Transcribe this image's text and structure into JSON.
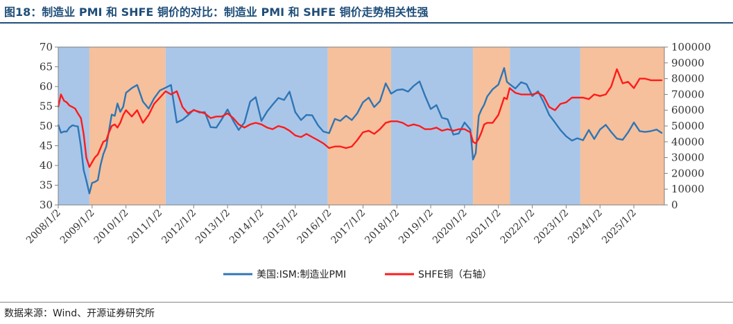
{
  "title": "图18：制造业 PMI 和 SHFE 铜价的对比：制造业 PMI 和 SHFE 铜价走势相关性强",
  "source": "数据来源：Wind、开源证券研究所",
  "chart_data": {
    "type": "line",
    "title": "",
    "xlabel": "",
    "ylabel": "",
    "x_ticks": [
      "2008/1/2",
      "2009/1/2",
      "2010/1/2",
      "2011/1/2",
      "2012/1/2",
      "2013/1/2",
      "2014/1/2",
      "2015/1/2",
      "2016/1/2",
      "2017/1/2",
      "2018/1/2",
      "2019/1/2",
      "2020/1/2",
      "2021/1/2",
      "2022/1/2",
      "2023/1/2",
      "2024/1/2",
      "2025/1/2"
    ],
    "x_range": [
      2008.0,
      2025.9
    ],
    "y_left": {
      "range": [
        30,
        70
      ],
      "ticks": [
        "30",
        "35",
        "40",
        "45",
        "50",
        "55",
        "60",
        "65",
        "70"
      ]
    },
    "y_right": {
      "range": [
        0,
        100000
      ],
      "ticks": [
        "0",
        "10000",
        "20000",
        "30000",
        "40000",
        "50000",
        "60000",
        "70000",
        "80000",
        "90000",
        "100000"
      ]
    },
    "shading": [
      {
        "from": 2008.0,
        "to": 2008.92,
        "color": "#a9c6e8"
      },
      {
        "from": 2008.92,
        "to": 2011.17,
        "color": "#f5c09b"
      },
      {
        "from": 2011.17,
        "to": 2015.96,
        "color": "#a9c6e8"
      },
      {
        "from": 2015.96,
        "to": 2017.83,
        "color": "#f5c09b"
      },
      {
        "from": 2017.83,
        "to": 2020.25,
        "color": "#a9c6e8"
      },
      {
        "from": 2020.25,
        "to": 2021.34,
        "color": "#f5c09b"
      },
      {
        "from": 2021.34,
        "to": 2023.42,
        "color": "#a9c6e8"
      },
      {
        "from": 2023.42,
        "to": 2025.9,
        "color": "#f5c09b"
      }
    ],
    "series": [
      {
        "name": "美国:ISM:制造业PMI",
        "axis": "left",
        "color": "#2e75b6",
        "x": [
          2008.0,
          2008.08,
          2008.17,
          2008.25,
          2008.33,
          2008.42,
          2008.5,
          2008.58,
          2008.67,
          2008.75,
          2008.83,
          2008.92,
          2009.0,
          2009.08,
          2009.17,
          2009.25,
          2009.33,
          2009.42,
          2009.5,
          2009.58,
          2009.67,
          2009.75,
          2009.83,
          2009.92,
          2010.0,
          2010.17,
          2010.33,
          2010.5,
          2010.67,
          2010.83,
          2011.0,
          2011.17,
          2011.33,
          2011.5,
          2011.67,
          2011.83,
          2012.0,
          2012.17,
          2012.33,
          2012.5,
          2012.67,
          2012.83,
          2013.0,
          2013.17,
          2013.33,
          2013.5,
          2013.67,
          2013.83,
          2014.0,
          2014.17,
          2014.33,
          2014.5,
          2014.67,
          2014.83,
          2015.0,
          2015.17,
          2015.33,
          2015.5,
          2015.67,
          2015.83,
          2016.0,
          2016.17,
          2016.33,
          2016.5,
          2016.67,
          2016.83,
          2017.0,
          2017.17,
          2017.33,
          2017.5,
          2017.67,
          2017.83,
          2018.0,
          2018.17,
          2018.33,
          2018.5,
          2018.67,
          2018.83,
          2019.0,
          2019.17,
          2019.33,
          2019.5,
          2019.67,
          2019.83,
          2020.0,
          2020.17,
          2020.25,
          2020.33,
          2020.42,
          2020.5,
          2020.58,
          2020.67,
          2020.83,
          2021.0,
          2021.17,
          2021.25,
          2021.33,
          2021.5,
          2021.67,
          2021.83,
          2022.0,
          2022.17,
          2022.33,
          2022.5,
          2022.67,
          2022.83,
          2023.0,
          2023.17,
          2023.33,
          2023.5,
          2023.67,
          2023.83,
          2024.0,
          2024.17,
          2024.33,
          2024.5,
          2024.67,
          2024.83,
          2025.0,
          2025.17,
          2025.33,
          2025.5,
          2025.67,
          2025.83
        ],
        "values": [
          50.3,
          48.3,
          48.6,
          48.6,
          49.6,
          50.2,
          50.0,
          49.9,
          44.8,
          38.9,
          36.2,
          32.9,
          35.6,
          35.8,
          36.3,
          40.1,
          42.8,
          44.8,
          48.9,
          52.9,
          52.6,
          55.7,
          53.6,
          54.9,
          58.4,
          59.6,
          60.4,
          56.2,
          54.4,
          57.0,
          59.0,
          59.7,
          60.4,
          50.9,
          51.6,
          52.7,
          54.1,
          53.4,
          53.5,
          49.7,
          49.6,
          51.7,
          54.2,
          51.3,
          49.0,
          50.9,
          56.2,
          57.3,
          51.3,
          53.7,
          55.4,
          57.1,
          56.6,
          58.7,
          53.5,
          51.5,
          52.8,
          52.7,
          50.2,
          48.6,
          48.2,
          51.8,
          51.3,
          52.6,
          51.5,
          53.2,
          56.0,
          57.2,
          54.8,
          56.3,
          60.8,
          58.2,
          59.1,
          59.3,
          58.7,
          60.2,
          61.3,
          57.7,
          54.3,
          55.3,
          52.1,
          51.7,
          47.8,
          48.1,
          50.9,
          49.1,
          41.5,
          43.1,
          52.6,
          54.2,
          55.4,
          57.5,
          59.3,
          60.5,
          64.7,
          61.2,
          60.6,
          59.5,
          61.1,
          60.6,
          57.6,
          58.8,
          56.1,
          52.8,
          50.9,
          49.0,
          47.4,
          46.3,
          46.9,
          46.4,
          49.0,
          46.7,
          49.1,
          50.3,
          48.5,
          46.8,
          46.5,
          48.4,
          50.9,
          48.7,
          48.5,
          48.7,
          49.1,
          48.2
        ]
      },
      {
        "name": "SHFE铜（右轴）",
        "axis": "right",
        "color": "#ff1a1a",
        "x": [
          2008.0,
          2008.08,
          2008.17,
          2008.25,
          2008.33,
          2008.42,
          2008.5,
          2008.58,
          2008.67,
          2008.75,
          2008.83,
          2008.92,
          2009.0,
          2009.08,
          2009.17,
          2009.25,
          2009.33,
          2009.42,
          2009.5,
          2009.58,
          2009.67,
          2009.75,
          2009.83,
          2009.92,
          2010.0,
          2010.17,
          2010.33,
          2010.5,
          2010.67,
          2010.83,
          2011.0,
          2011.17,
          2011.33,
          2011.5,
          2011.67,
          2011.83,
          2012.0,
          2012.17,
          2012.33,
          2012.5,
          2012.67,
          2012.83,
          2013.0,
          2013.17,
          2013.33,
          2013.5,
          2013.67,
          2013.83,
          2014.0,
          2014.17,
          2014.33,
          2014.5,
          2014.67,
          2014.83,
          2015.0,
          2015.17,
          2015.33,
          2015.5,
          2015.67,
          2015.83,
          2016.0,
          2016.17,
          2016.33,
          2016.5,
          2016.67,
          2016.83,
          2017.0,
          2017.17,
          2017.33,
          2017.5,
          2017.67,
          2017.83,
          2018.0,
          2018.17,
          2018.33,
          2018.5,
          2018.67,
          2018.83,
          2019.0,
          2019.17,
          2019.33,
          2019.5,
          2019.67,
          2019.83,
          2020.0,
          2020.17,
          2020.25,
          2020.33,
          2020.42,
          2020.5,
          2020.58,
          2020.67,
          2020.83,
          2021.0,
          2021.17,
          2021.25,
          2021.33,
          2021.5,
          2021.67,
          2021.83,
          2022.0,
          2022.17,
          2022.33,
          2022.5,
          2022.67,
          2022.83,
          2023.0,
          2023.17,
          2023.33,
          2023.5,
          2023.67,
          2023.83,
          2024.0,
          2024.17,
          2024.33,
          2024.5,
          2024.67,
          2024.83,
          2025.0,
          2025.17,
          2025.33,
          2025.5,
          2025.67,
          2025.83
        ],
        "values": [
          62000,
          70000,
          66000,
          65000,
          63000,
          62000,
          61000,
          58000,
          55000,
          45000,
          30000,
          24000,
          27000,
          30000,
          32000,
          36000,
          40000,
          41000,
          46000,
          50000,
          51000,
          49000,
          52000,
          57000,
          60000,
          56000,
          60000,
          52000,
          57000,
          64000,
          68000,
          72000,
          70000,
          72000,
          62000,
          58000,
          60000,
          59000,
          58000,
          55000,
          56000,
          56000,
          58000,
          55000,
          51000,
          49000,
          51000,
          52000,
          51000,
          49000,
          48000,
          50000,
          49000,
          47000,
          44000,
          43000,
          45000,
          43000,
          41000,
          39000,
          36000,
          37000,
          37000,
          36000,
          37000,
          41000,
          46000,
          47000,
          45000,
          48000,
          52000,
          53000,
          53000,
          52000,
          50000,
          51000,
          50000,
          48000,
          48000,
          49000,
          47000,
          48000,
          47000,
          48000,
          48000,
          46000,
          40000,
          39000,
          42000,
          46000,
          51000,
          52000,
          52000,
          57000,
          68000,
          67000,
          74000,
          71000,
          70000,
          70000,
          70000,
          71000,
          69000,
          62000,
          60000,
          64000,
          65000,
          68000,
          68000,
          68000,
          67000,
          70000,
          69000,
          70000,
          75000,
          86000,
          77000,
          78000,
          74000,
          80000,
          80000,
          79000,
          79000,
          79000
        ]
      }
    ],
    "legend": {
      "position": "bottom-center"
    }
  }
}
